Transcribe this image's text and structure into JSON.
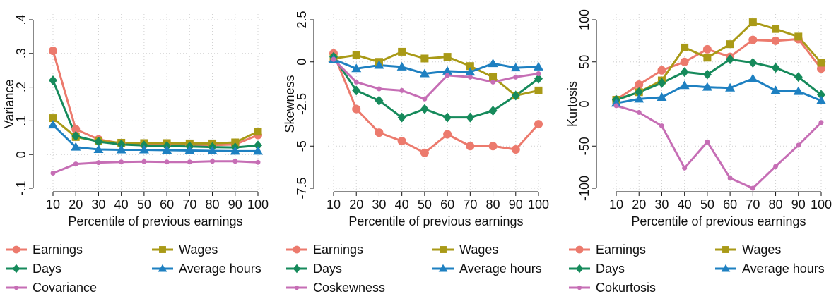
{
  "chart_data": [
    {
      "type": "line",
      "ylabel": "Variance",
      "xlabel": "Percentile of previous earnings",
      "x": [
        10,
        20,
        30,
        40,
        50,
        60,
        70,
        80,
        90,
        100
      ],
      "xlim": [
        10,
        100
      ],
      "xticks": [
        10,
        20,
        30,
        40,
        50,
        60,
        70,
        80,
        90,
        100
      ],
      "ylim": [
        -0.1,
        0.4
      ],
      "yticks": [
        {
          "value": -0.1,
          "label": "-.1"
        },
        0,
        {
          "value": 0.1,
          "label": ".1"
        },
        {
          "value": 0.2,
          "label": ".2"
        },
        {
          "value": 0.3,
          "label": ".3"
        },
        {
          "value": 0.4,
          "label": ".4"
        }
      ],
      "grid": true,
      "series": [
        {
          "name": "Earnings",
          "color": "#ec7a6d",
          "marker": "circle",
          "values": [
            0.308,
            0.075,
            0.045,
            0.033,
            0.03,
            0.029,
            0.028,
            0.028,
            0.03,
            0.058
          ]
        },
        {
          "name": "Wages",
          "color": "#a99a17",
          "marker": "square",
          "values": [
            0.108,
            0.052,
            0.04,
            0.035,
            0.034,
            0.034,
            0.033,
            0.033,
            0.036,
            0.068
          ]
        },
        {
          "name": "Days",
          "color": "#168a5b",
          "marker": "diamond",
          "values": [
            0.22,
            0.055,
            0.038,
            0.03,
            0.027,
            0.025,
            0.024,
            0.022,
            0.021,
            0.027
          ]
        },
        {
          "name": "Average hours",
          "color": "#1e80c1",
          "marker": "triangle",
          "values": [
            0.088,
            0.022,
            0.015,
            0.014,
            0.014,
            0.013,
            0.012,
            0.011,
            0.01,
            0.01
          ]
        },
        {
          "name": "Covariance",
          "color": "#c66eb5",
          "marker": "dot",
          "values": [
            -0.055,
            -0.028,
            -0.024,
            -0.022,
            -0.021,
            -0.022,
            -0.022,
            -0.02,
            -0.02,
            -0.023
          ]
        }
      ]
    },
    {
      "type": "line",
      "ylabel": "Skewness",
      "xlabel": "Percentile of previous earnings",
      "x": [
        10,
        20,
        30,
        40,
        50,
        60,
        70,
        80,
        90,
        100
      ],
      "xlim": [
        10,
        100
      ],
      "xticks": [
        10,
        20,
        30,
        40,
        50,
        60,
        70,
        80,
        90,
        100
      ],
      "ylim": [
        -7.5,
        2.5
      ],
      "yticks": [
        -7.5,
        -5,
        -2.5,
        0,
        2.5
      ],
      "grid": true,
      "series": [
        {
          "name": "Earnings",
          "color": "#ec7a6d",
          "marker": "circle",
          "values": [
            0.5,
            -2.8,
            -4.2,
            -4.7,
            -5.4,
            -4.3,
            -5.0,
            -5.0,
            -5.2,
            -3.7
          ]
        },
        {
          "name": "Wages",
          "color": "#a99a17",
          "marker": "square",
          "values": [
            0.2,
            0.4,
            0,
            0.6,
            0.2,
            0.3,
            -0.25,
            -0.9,
            -2.0,
            -1.7
          ]
        },
        {
          "name": "Days",
          "color": "#168a5b",
          "marker": "diamond",
          "values": [
            0.3,
            -1.7,
            -2.3,
            -3.3,
            -2.8,
            -3.3,
            -3.3,
            -2.9,
            -2.0,
            -1.0
          ]
        },
        {
          "name": "Average hours",
          "color": "#1e80c1",
          "marker": "triangle",
          "values": [
            0.15,
            -0.4,
            -0.2,
            -0.3,
            -0.7,
            -0.55,
            -0.6,
            -0.1,
            -0.35,
            -0.3
          ]
        },
        {
          "name": "Coskewness",
          "color": "#c66eb5",
          "marker": "dot",
          "values": [
            0.15,
            -1.2,
            -1.6,
            -1.7,
            -2.2,
            -0.8,
            -0.9,
            -1.2,
            -0.9,
            -0.7
          ]
        }
      ]
    },
    {
      "type": "line",
      "ylabel": "Kurtosis",
      "xlabel": "Percentile of previous earnings",
      "x": [
        10,
        20,
        30,
        40,
        50,
        60,
        70,
        80,
        90,
        100
      ],
      "xlim": [
        10,
        100
      ],
      "xticks": [
        10,
        20,
        30,
        40,
        50,
        60,
        70,
        80,
        90,
        100
      ],
      "ylim": [
        -100,
        100
      ],
      "yticks": [
        -100,
        -50,
        0,
        50,
        100
      ],
      "grid": true,
      "series": [
        {
          "name": "Earnings",
          "color": "#ec7a6d",
          "marker": "circle",
          "values": [
            5,
            23,
            40,
            50,
            65,
            56,
            76,
            75,
            77,
            42
          ]
        },
        {
          "name": "Wages",
          "color": "#a99a17",
          "marker": "square",
          "values": [
            5,
            14,
            28,
            67,
            55,
            71,
            97,
            89,
            80,
            49
          ]
        },
        {
          "name": "Days",
          "color": "#168a5b",
          "marker": "diamond",
          "values": [
            5,
            14,
            25,
            38,
            35,
            53,
            49,
            43,
            32,
            11
          ]
        },
        {
          "name": "Average hours",
          "color": "#1e80c1",
          "marker": "triangle",
          "values": [
            1,
            6,
            8,
            22,
            20,
            19,
            30,
            16,
            15,
            4
          ]
        },
        {
          "name": "Cokurtosis",
          "color": "#c66eb5",
          "marker": "dot",
          "values": [
            -2,
            -10,
            -26,
            -76,
            -45,
            -88,
            -100,
            -74,
            -49,
            -22
          ]
        }
      ]
    }
  ]
}
